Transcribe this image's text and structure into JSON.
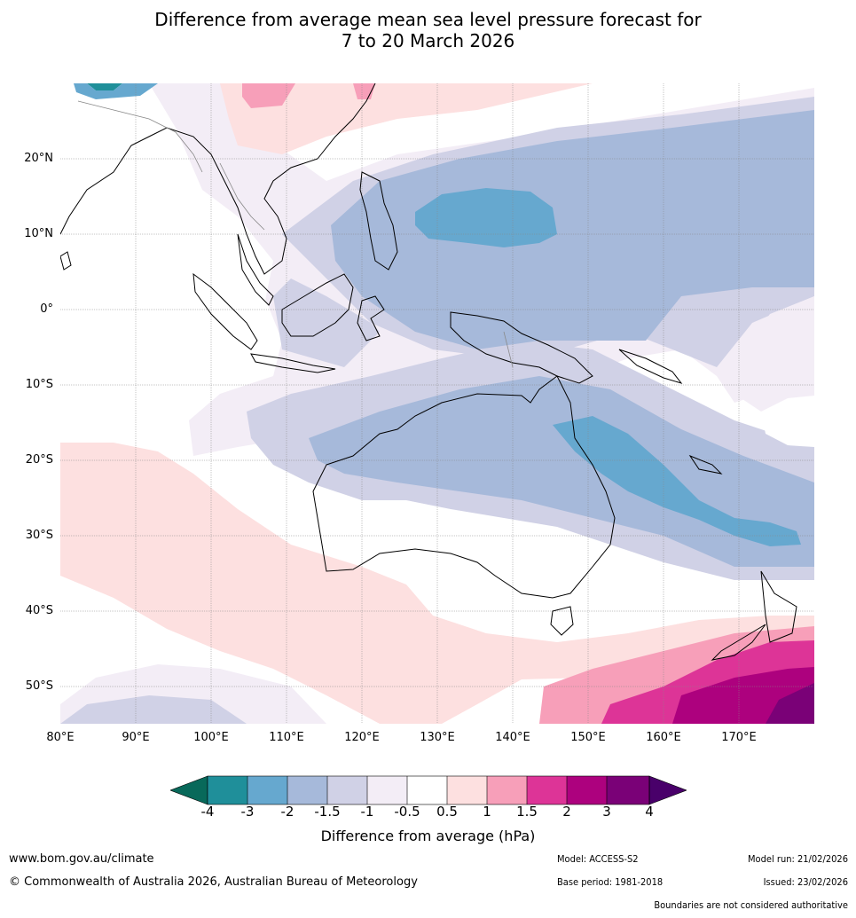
{
  "title": {
    "line1": "Difference from average mean sea level pressure forecast for",
    "line2": "7 to 20 March 2026"
  },
  "map": {
    "lat_labels": [
      "20°N",
      "10°N",
      "0°",
      "10°S",
      "20°S",
      "30°S",
      "40°S",
      "50°S"
    ],
    "lon_labels": [
      "80°E",
      "90°E",
      "100°E",
      "110°E",
      "120°E",
      "130°E",
      "140°E",
      "150°E",
      "160°E",
      "170°E"
    ],
    "lat_values": [
      20,
      10,
      0,
      -10,
      -20,
      -30,
      -40,
      -50
    ],
    "lon_values": [
      80,
      90,
      100,
      110,
      120,
      130,
      140,
      150,
      160,
      170
    ],
    "lat_range": [
      -55,
      30
    ],
    "lon_range": [
      80,
      180
    ]
  },
  "colorbar": {
    "title": "Difference from average (hPa)",
    "tick_labels": [
      "-4",
      "-3",
      "-2",
      "-1.5",
      "-1",
      "-0.5",
      "0.5",
      "1",
      "1.5",
      "2",
      "3",
      "4"
    ],
    "colors": {
      "below_min": "#08695a",
      "c1": "#1f8f9a",
      "c2": "#66a8cf",
      "c3": "#a6b9da",
      "c4": "#d0d1e6",
      "c5": "#f3edf6",
      "c6": "#ffffff",
      "c7": "#fde0e0",
      "c8": "#f79fb9",
      "c9": "#dd3497",
      "c10": "#ad017e",
      "c11": "#7a0177",
      "above_max": "#49006a"
    }
  },
  "footer": {
    "website": "www.bom.gov.au/climate",
    "copyright": "© Commonwealth of Australia 2026, Australian Bureau of Meteorology",
    "model": "Model: ACCESS-S2",
    "base_period": "Base period: 1981-2018",
    "model_run": "Model run: 21/02/2026",
    "issued": "Issued: 23/02/2026",
    "disclaimer": "Boundaries are not considered authoritative"
  }
}
